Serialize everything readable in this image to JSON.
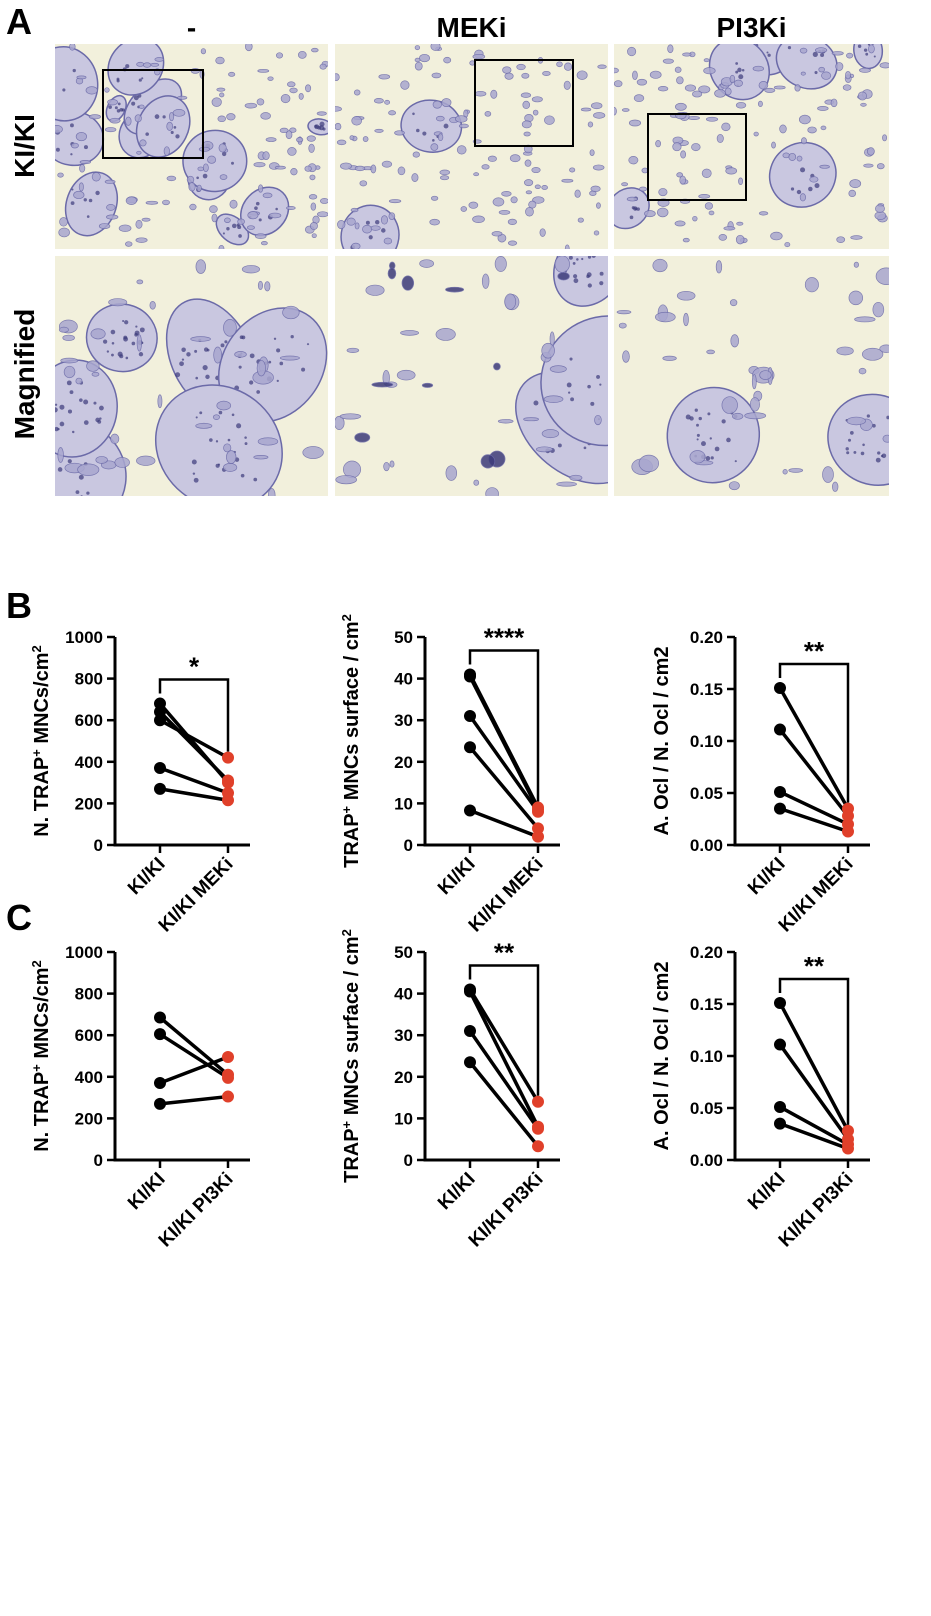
{
  "panels": {
    "a": "A",
    "b": "B",
    "c": "C"
  },
  "micrographs": {
    "columns": [
      "-",
      "MEKi",
      "PI3Ki"
    ],
    "rows": [
      "KI/KI",
      "Magnified"
    ],
    "colors": {
      "background": "#f2f0dc",
      "stain": "#6b6aa8",
      "dark_stain": "#3c3b7a"
    }
  },
  "colors": {
    "control": "#000000",
    "treated": "#e0402a"
  },
  "chart_data": [
    {
      "id": "b1",
      "type": "scatter-paired",
      "categories": [
        "KI/KI",
        "KI/KI MEKi"
      ],
      "ylabel_main": "N. TRAP",
      "ylabel_sup": "+",
      "ylabel_rest": " MNCs/cm",
      "ylabel_sup2": "2",
      "ylim": [
        0,
        1000
      ],
      "yticks": [
        "0",
        "200",
        "400",
        "600",
        "800",
        "1000"
      ],
      "significance": "*",
      "pairs": [
        [
          680,
          300
        ],
        [
          640,
          310
        ],
        [
          600,
          420
        ],
        [
          370,
          250
        ],
        [
          270,
          215
        ]
      ]
    },
    {
      "id": "b2",
      "type": "scatter-paired",
      "categories": [
        "KI/KI",
        "KI/KI MEKi"
      ],
      "ylabel_main": "TRAP",
      "ylabel_sup": "+",
      "ylabel_rest": " MNCs surface / cm",
      "ylabel_sup2": "2",
      "ylim": [
        0,
        50
      ],
      "yticks": [
        "0",
        "10",
        "20",
        "30",
        "40",
        "50"
      ],
      "significance": "****",
      "pairs": [
        [
          41,
          9
        ],
        [
          40.5,
          8.5
        ],
        [
          31,
          8
        ],
        [
          23.5,
          4
        ],
        [
          8.3,
          2
        ]
      ]
    },
    {
      "id": "b3",
      "type": "scatter-paired",
      "categories": [
        "KI/KI",
        "KI/KI MEKi"
      ],
      "ylabel_main": "A. Ocl / N. Ocl / cm2",
      "ylabel_sup": "",
      "ylabel_rest": "",
      "ylabel_sup2": "",
      "ylim": [
        0,
        0.2
      ],
      "yticks": [
        "0.00",
        "0.05",
        "0.10",
        "0.15",
        "0.20"
      ],
      "significance": "**",
      "pairs": [
        [
          0.151,
          0.035
        ],
        [
          0.111,
          0.028
        ],
        [
          0.051,
          0.02
        ],
        [
          0.035,
          0.013
        ]
      ]
    },
    {
      "id": "c1",
      "type": "scatter-paired",
      "categories": [
        "KI/KI",
        "KI/KI PI3Ki"
      ],
      "ylabel_main": "N. TRAP",
      "ylabel_sup": "+",
      "ylabel_rest": " MNCs/cm",
      "ylabel_sup2": "2",
      "ylim": [
        0,
        1000
      ],
      "yticks": [
        "0",
        "200",
        "400",
        "600",
        "800",
        "1000"
      ],
      "significance": "",
      "pairs": [
        [
          685,
          410
        ],
        [
          605,
          395
        ],
        [
          370,
          495
        ],
        [
          270,
          305
        ]
      ]
    },
    {
      "id": "c2",
      "type": "scatter-paired",
      "categories": [
        "KI/KI",
        "KI/KI PI3Ki"
      ],
      "ylabel_main": "TRAP",
      "ylabel_sup": "+",
      "ylabel_rest": " MNCs surface / cm",
      "ylabel_sup2": "2",
      "ylim": [
        0,
        50
      ],
      "yticks": [
        "0",
        "10",
        "20",
        "30",
        "40",
        "50"
      ],
      "significance": "**",
      "pairs": [
        [
          41,
          14
        ],
        [
          40.5,
          8
        ],
        [
          31,
          7.5
        ],
        [
          23.5,
          3.3
        ]
      ]
    },
    {
      "id": "c3",
      "type": "scatter-paired",
      "categories": [
        "KI/KI",
        "KI/KI PI3Ki"
      ],
      "ylabel_main": "A. Ocl / N. Ocl / cm2",
      "ylabel_sup": "",
      "ylabel_rest": "",
      "ylabel_sup2": "",
      "ylim": [
        0,
        0.2
      ],
      "yticks": [
        "0.00",
        "0.05",
        "0.10",
        "0.15",
        "0.20"
      ],
      "significance": "**",
      "pairs": [
        [
          0.151,
          0.028
        ],
        [
          0.111,
          0.02
        ],
        [
          0.051,
          0.015
        ],
        [
          0.035,
          0.011
        ]
      ]
    }
  ]
}
